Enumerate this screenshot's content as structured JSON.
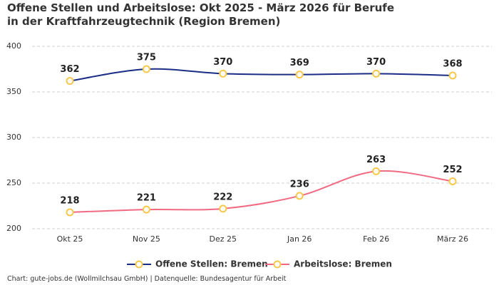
{
  "chart_data": {
    "type": "line",
    "title": "Offene Stellen und Arbeitslose: Okt 2025 - März 2026 für Berufe in der Kraftfahrzeugtechnik (Region Bremen)",
    "categories": [
      "Okt 25",
      "Nov 25",
      "Dez 25",
      "Jan 26",
      "Feb 26",
      "März 26"
    ],
    "series": [
      {
        "name": "Offene Stellen: Bremen",
        "color": "#1b2c85",
        "values": [
          362,
          375,
          370,
          369,
          370,
          368
        ]
      },
      {
        "name": "Arbeitslose: Bremen",
        "color": "#f06b82",
        "values": [
          218,
          221,
          222,
          236,
          263,
          252
        ]
      }
    ],
    "marker_color": "#f7c84a",
    "ylim": [
      200,
      400
    ],
    "yticks": [
      200,
      250,
      300,
      350,
      400
    ],
    "grid": true,
    "footer": "Chart: gute-jobs.de (Wollmilchsau GmbH) | Datenquelle: Bundesagentur für Arbeit"
  }
}
